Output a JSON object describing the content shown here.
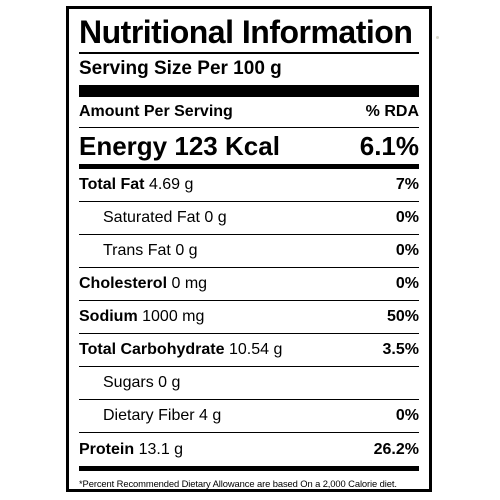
{
  "label": {
    "title": "Nutritional Information",
    "serving_size": "Serving Size Per 100 g",
    "amount_per_serving": "Amount Per Serving",
    "rda_header": "% RDA",
    "energy": {
      "label": "Energy",
      "value": "123 Kcal",
      "rda": "6.1%"
    },
    "nutrients": [
      {
        "name": "Total Fat",
        "amount": "4.69 g",
        "rda": "7%",
        "bold_name": true,
        "sub": false
      },
      {
        "name": "Saturated Fat",
        "amount": "0 g",
        "rda": "0%",
        "bold_name": false,
        "sub": true
      },
      {
        "name": "Trans Fat",
        "amount": "0 g",
        "rda": "0%",
        "bold_name": false,
        "sub": true
      },
      {
        "name": "Cholesterol",
        "amount": "0 mg",
        "rda": "0%",
        "bold_name": true,
        "sub": false
      },
      {
        "name": "Sodium",
        "amount": "1000 mg",
        "rda": "50%",
        "bold_name": true,
        "sub": false
      },
      {
        "name": "Total Carbohydrate",
        "amount": "10.54 g",
        "rda": "3.5%",
        "bold_name": true,
        "sub": false
      },
      {
        "name": "Sugars",
        "amount": "0 g",
        "rda": "",
        "bold_name": false,
        "sub": true
      },
      {
        "name": "Dietary Fiber",
        "amount": "4 g",
        "rda": "0%",
        "bold_name": false,
        "sub": true
      },
      {
        "name": "Protein",
        "amount": "13.1 g",
        "rda": "26.2%",
        "bold_name": true,
        "sub": false
      }
    ],
    "footnote": "*Percent Recommended Dietary Allowance are based On a 2,000 Calorie diet."
  }
}
